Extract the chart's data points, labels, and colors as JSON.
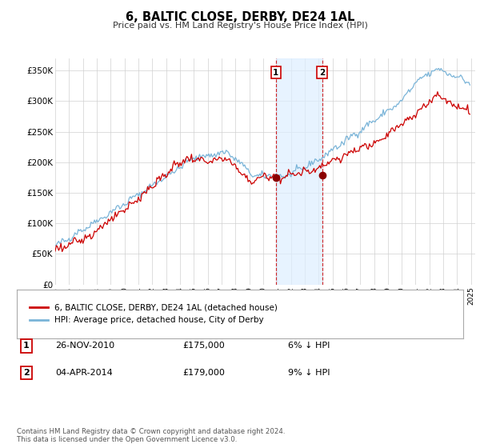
{
  "title": "6, BALTIC CLOSE, DERBY, DE24 1AL",
  "subtitle": "Price paid vs. HM Land Registry's House Price Index (HPI)",
  "legend_line1": "6, BALTIC CLOSE, DERBY, DE24 1AL (detached house)",
  "legend_line2": "HPI: Average price, detached house, City of Derby",
  "transaction1_date": "26-NOV-2010",
  "transaction1_price": "£175,000",
  "transaction1_hpi": "6% ↓ HPI",
  "transaction1_year": 2010.917,
  "transaction1_value": 175000,
  "transaction2_date": "04-APR-2014",
  "transaction2_price": "£179,000",
  "transaction2_hpi": "9% ↓ HPI",
  "transaction2_year": 2014.25,
  "transaction2_value": 179000,
  "footnote": "Contains HM Land Registry data © Crown copyright and database right 2024.\nThis data is licensed under the Open Government Licence v3.0.",
  "hpi_color": "#7ab4d8",
  "price_color": "#cc0000",
  "marker_color": "#8b0000",
  "vline_color": "#cc0000",
  "highlight_color": "#ddeeff",
  "ylim": [
    0,
    370000
  ],
  "yticks": [
    0,
    50000,
    100000,
    150000,
    200000,
    250000,
    300000,
    350000
  ],
  "ytick_labels": [
    "£0",
    "£50K",
    "£100K",
    "£150K",
    "£200K",
    "£250K",
    "£300K",
    "£350K"
  ],
  "xtick_years": [
    1995,
    1996,
    1997,
    1998,
    1999,
    2000,
    2001,
    2002,
    2003,
    2004,
    2005,
    2006,
    2007,
    2008,
    2009,
    2010,
    2011,
    2012,
    2013,
    2014,
    2015,
    2016,
    2017,
    2018,
    2019,
    2020,
    2021,
    2022,
    2023,
    2024,
    2025
  ]
}
